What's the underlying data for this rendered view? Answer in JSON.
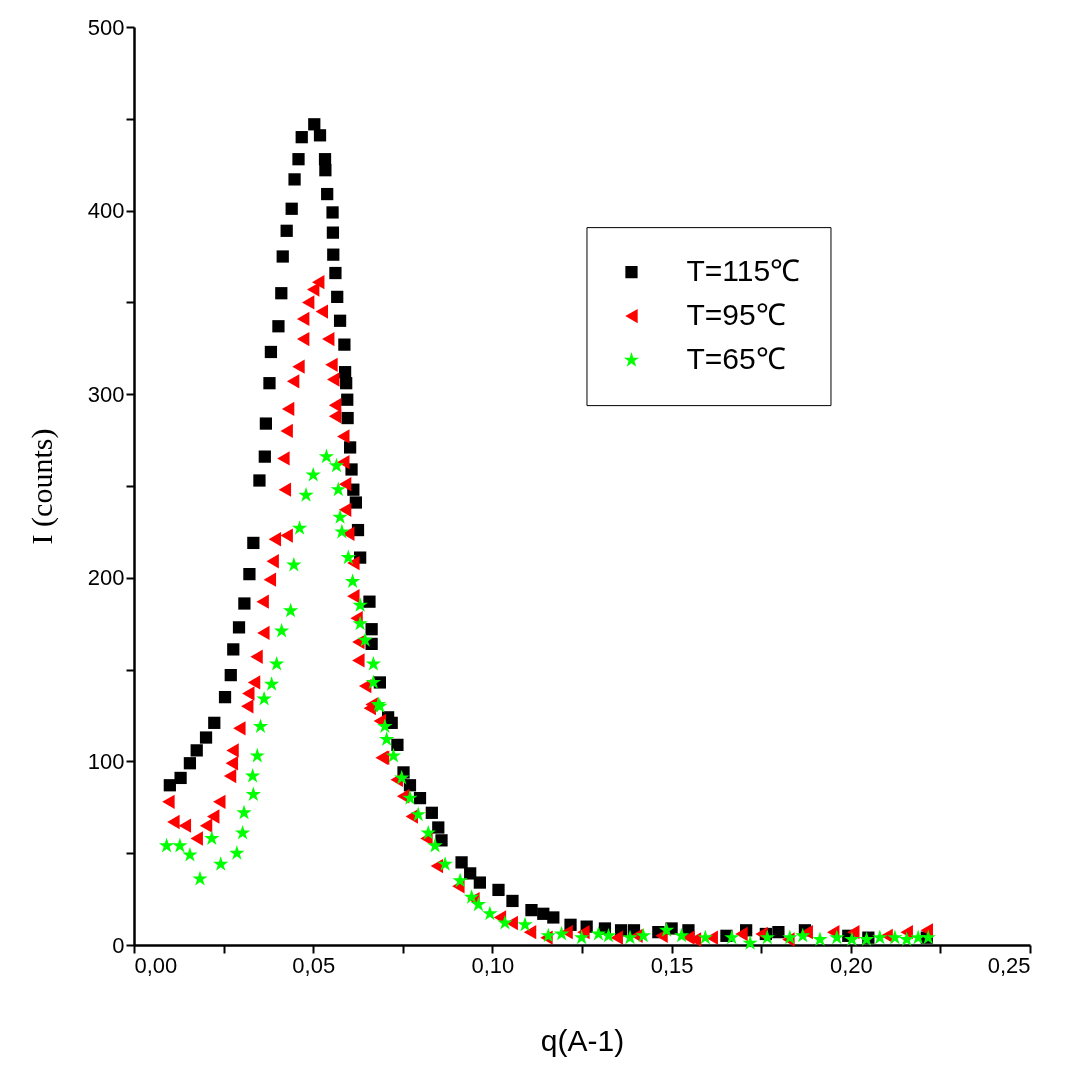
{
  "chart_data": {
    "type": "scatter",
    "xlabel": "q(A-1)",
    "ylabel": "I (counts)",
    "xlim": [
      0,
      0.25
    ],
    "ylim": [
      0,
      500
    ],
    "xticks": [
      {
        "value": 0,
        "label": "0,00"
      },
      {
        "value": 0.025,
        "label": null
      },
      {
        "value": 0.05,
        "label": "0,05"
      },
      {
        "value": 0.075,
        "label": null
      },
      {
        "value": 0.1,
        "label": "0,10"
      },
      {
        "value": 0.125,
        "label": null
      },
      {
        "value": 0.15,
        "label": "0,15"
      },
      {
        "value": 0.175,
        "label": null
      },
      {
        "value": 0.2,
        "label": "0,20"
      },
      {
        "value": 0.225,
        "label": null
      },
      {
        "value": 0.25,
        "label": "0,25"
      }
    ],
    "yticks": [
      0,
      {
        "value": 50,
        "label": null
      },
      100,
      {
        "value": 150,
        "label": null
      },
      200,
      {
        "value": 250,
        "label": null
      },
      300,
      {
        "value": 350,
        "label": null
      },
      400,
      {
        "value": 450,
        "label": null
      },
      500
    ],
    "grid": false,
    "legend": "top right",
    "series": [
      {
        "name": "T=115℃",
        "color": "#000000",
        "marker": "square",
        "x": [
          0.01,
          0.013,
          0.0156,
          0.0175,
          0.0201,
          0.0224,
          0.0254,
          0.027,
          0.0277,
          0.0293,
          0.0308,
          0.0322,
          0.0333,
          0.035,
          0.0365,
          0.0368,
          0.0378,
          0.0382,
          0.0403,
          0.0411,
          0.0415,
          0.0426,
          0.044,
          0.0448,
          0.0459,
          0.0468,
          0.0503,
          0.0519,
          0.0533,
          0.0534,
          0.0539,
          0.0554,
          0.0555,
          0.0556,
          0.0562,
          0.0567,
          0.0575,
          0.0587,
          0.0589,
          0.0592,
          0.0595,
          0.0596,
          0.0603,
          0.0607,
          0.0612,
          0.0619,
          0.0625,
          0.0631,
          0.0657,
          0.0663,
          0.0663,
          0.0686,
          0.0709,
          0.0719,
          0.0735,
          0.0752,
          0.077,
          0.0798,
          0.0831,
          0.0849,
          0.0858,
          0.0914,
          0.0938,
          0.0965,
          0.1017,
          0.1056,
          0.1109,
          0.1142,
          0.117,
          0.1218,
          0.1263,
          0.1314,
          0.1359,
          0.1395,
          0.1463,
          0.15,
          0.1547,
          0.1653,
          0.1708,
          0.1763,
          0.1798,
          0.1872,
          0.1993,
          0.2049,
          0.2212
        ],
        "values": [
          87,
          91,
          99,
          106,
          113,
          121,
          135,
          147,
          161,
          173,
          186,
          202,
          219,
          253,
          266,
          284,
          306,
          323,
          337,
          355,
          375,
          389,
          401,
          417,
          428,
          440,
          447,
          441,
          428,
          422,
          409,
          399,
          388,
          376,
          366,
          353,
          340,
          327,
          312,
          306,
          297,
          287,
          271,
          259,
          248,
          241,
          226,
          211,
          187,
          172,
          164,
          143,
          124,
          121,
          109,
          94,
          87,
          80,
          72,
          64,
          57,
          45,
          39,
          34,
          30,
          24,
          19,
          17,
          15,
          11,
          10,
          9,
          8,
          8,
          7,
          9,
          8,
          5,
          8,
          6,
          7,
          8,
          5,
          4,
          4
        ]
      },
      {
        "name": "T=95℃",
        "color": "#ff0000",
        "marker": "triangle",
        "x": [
          0.0096,
          0.011,
          0.0142,
          0.0175,
          0.0201,
          0.0221,
          0.0238,
          0.0268,
          0.0273,
          0.0275,
          0.0294,
          0.0316,
          0.0319,
          0.0335,
          0.0342,
          0.0361,
          0.0359,
          0.0379,
          0.0387,
          0.0393,
          0.0426,
          0.0421,
          0.0417,
          0.0426,
          0.043,
          0.0444,
          0.0459,
          0.0472,
          0.0472,
          0.0486,
          0.05,
          0.0514,
          0.0524,
          0.0542,
          0.0551,
          0.0556,
          0.0561,
          0.0561,
          0.0584,
          0.0584,
          0.0589,
          0.0589,
          0.0598,
          0.0612,
          0.0612,
          0.0621,
          0.0626,
          0.0626,
          0.0645,
          0.0663,
          0.0686,
          0.0695,
          0.0658,
          0.0691,
          0.0733,
          0.0751,
          0.0775,
          0.0816,
          0.0845,
          0.0905,
          0.0947,
          0.1021,
          0.1054,
          0.1105,
          0.1151,
          0.1207,
          0.1254,
          0.1347,
          0.1402,
          0.1472,
          0.1547,
          0.1565,
          0.1612,
          0.1695,
          0.1751,
          0.1826,
          0.1877,
          0.1951,
          0.2007,
          0.21,
          0.2156,
          0.2212
        ],
        "values": [
          78,
          67,
          65,
          58,
          65,
          70,
          78,
          92,
          99,
          106,
          118,
          130,
          137,
          143,
          157,
          170,
          187,
          199,
          209,
          221,
          223,
          248,
          265,
          280,
          292,
          307,
          315,
          330,
          341,
          350,
          357,
          361,
          345,
          330,
          316,
          308,
          294,
          288,
          277,
          263,
          251,
          237,
          224,
          208,
          190,
          178,
          165,
          155,
          141,
          131,
          122,
          102,
          129,
          102,
          90,
          81,
          70,
          58,
          43,
          32,
          25,
          15,
          12,
          7,
          4,
          7,
          7,
          4,
          5,
          5,
          4,
          3,
          4,
          6,
          6,
          3,
          7,
          7,
          7,
          5,
          7,
          8
        ]
      },
      {
        "name": "T=65℃",
        "color": "#00ff00",
        "marker": "star",
        "x": [
          0.0091,
          0.0128,
          0.0156,
          0.0184,
          0.0217,
          0.0242,
          0.0287,
          0.0303,
          0.0307,
          0.0331,
          0.0333,
          0.0344,
          0.0353,
          0.0363,
          0.0384,
          0.0398,
          0.0412,
          0.0437,
          0.0446,
          0.0462,
          0.048,
          0.05,
          0.0537,
          0.0565,
          0.057,
          0.0575,
          0.058,
          0.0598,
          0.061,
          0.0631,
          0.0631,
          0.0645,
          0.0668,
          0.0668,
          0.0682,
          0.0686,
          0.07,
          0.0705,
          0.0724,
          0.0747,
          0.077,
          0.0793,
          0.0821,
          0.084,
          0.0868,
          0.091,
          0.0942,
          0.0961,
          0.0993,
          0.1035,
          0.1091,
          0.1156,
          0.1193,
          0.1249,
          0.1296,
          0.1324,
          0.1384,
          0.1421,
          0.1486,
          0.1528,
          0.1594,
          0.1668,
          0.1719,
          0.1767,
          0.183,
          0.1866,
          0.1914,
          0.1961,
          0.2003,
          0.2044,
          0.2081,
          0.2123,
          0.2156,
          0.2188,
          0.2216
        ],
        "values": [
          54,
          54,
          49,
          36,
          58,
          44,
          50,
          61,
          72,
          92,
          82,
          103,
          119,
          134,
          142,
          153,
          171,
          182,
          207,
          227,
          245,
          256,
          266,
          261,
          248,
          233,
          225,
          211,
          198,
          185,
          175,
          166,
          153,
          143,
          131,
          130,
          119,
          112,
          103,
          91,
          80,
          71,
          61,
          54,
          44,
          35,
          26,
          22,
          17,
          12,
          11,
          5,
          6,
          4,
          6,
          5,
          4,
          5,
          8,
          5,
          4,
          4,
          1,
          4,
          4,
          5,
          3,
          4,
          3,
          3,
          4,
          4,
          3,
          4,
          4
        ]
      }
    ]
  }
}
